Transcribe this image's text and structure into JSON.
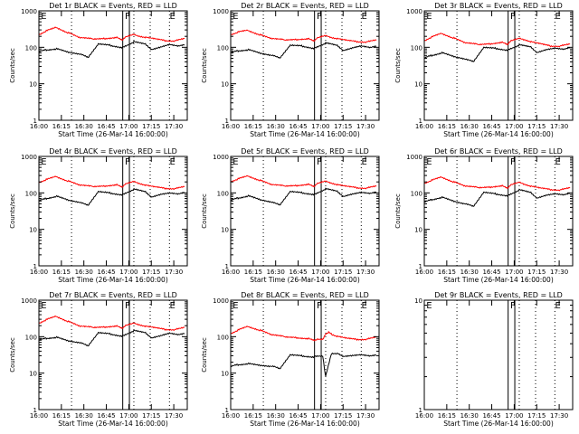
{
  "chart_data": [
    {
      "type": "line",
      "title": "Det 1r BLACK = Events, RED = LLD",
      "xlabel": "Start Time (26-Mar-14 16:00:00)",
      "ylabel": "Counts/sec",
      "xlim": [
        0,
        100
      ],
      "ylim": [
        1,
        1000
      ],
      "yscale": "log",
      "grid": false,
      "xticks": [
        "16:00",
        "16:15",
        "16:30",
        "16:45",
        "17:00",
        "17:15",
        "17:30"
      ],
      "yticks": [
        "1",
        "10",
        "100",
        "1000"
      ],
      "markers": [
        "E",
        "F",
        "E"
      ],
      "dotted_lines": [
        22,
        64,
        75,
        88
      ],
      "solid_lines": [
        56.5,
        61
      ],
      "series": [
        {
          "color": "#ff0000",
          "x": [
            0,
            5,
            12,
            20,
            28,
            36,
            44,
            52,
            56,
            58,
            64,
            68,
            72,
            78,
            85,
            92,
            98
          ],
          "values": [
            220,
            280,
            350,
            250,
            180,
            170,
            175,
            190,
            160,
            190,
            230,
            200,
            185,
            170,
            155,
            150,
            170
          ]
        },
        {
          "color": "#000000",
          "x": [
            0,
            5,
            12,
            20,
            26,
            29,
            33,
            40,
            48,
            56,
            57,
            64,
            72,
            76,
            82,
            88,
            94,
            98
          ],
          "values": [
            75,
            85,
            90,
            72,
            65,
            62,
            52,
            125,
            115,
            100,
            105,
            140,
            120,
            85,
            100,
            120,
            110,
            120
          ]
        }
      ]
    },
    {
      "type": "line",
      "title": "Det 2r BLACK = Events, RED = LLD",
      "xlabel": "Start Time (26-Mar-14 16:00:00)",
      "ylabel": "Counts/sec",
      "xlim": [
        0,
        100
      ],
      "ylim": [
        1,
        1000
      ],
      "yscale": "log",
      "grid": false,
      "xticks": [
        "16:00",
        "16:15",
        "16:30",
        "16:45",
        "17:00",
        "17:15",
        "17:30"
      ],
      "yticks": [
        "1",
        "10",
        "100",
        "1000"
      ],
      "markers": [
        "E",
        "F",
        "E"
      ],
      "dotted_lines": [
        22,
        64,
        75,
        88
      ],
      "solid_lines": [
        56.5,
        61
      ],
      "series": [
        {
          "color": "#ff0000",
          "x": [
            0,
            5,
            12,
            20,
            28,
            36,
            44,
            52,
            56,
            58,
            64,
            68,
            72,
            78,
            85,
            92,
            98
          ],
          "values": [
            220,
            260,
            290,
            220,
            170,
            160,
            165,
            175,
            150,
            180,
            215,
            185,
            170,
            155,
            145,
            140,
            155
          ]
        },
        {
          "color": "#000000",
          "x": [
            0,
            5,
            12,
            20,
            26,
            29,
            33,
            40,
            48,
            56,
            57,
            64,
            72,
            76,
            82,
            88,
            94,
            98
          ],
          "values": [
            70,
            80,
            85,
            68,
            60,
            58,
            50,
            115,
            110,
            95,
            100,
            130,
            110,
            80,
            95,
            110,
            100,
            110
          ]
        }
      ]
    },
    {
      "type": "line",
      "title": "Det 3r BLACK = Events, RED = LLD",
      "xlabel": "Start Time (26-Mar-14 16:00:00)",
      "ylabel": "Counts/sec",
      "xlim": [
        0,
        100
      ],
      "ylim": [
        1,
        1000
      ],
      "yscale": "log",
      "grid": false,
      "xticks": [
        "16:00",
        "16:15",
        "16:30",
        "16:45",
        "17:00",
        "17:15",
        "17:30"
      ],
      "yticks": [
        "1",
        "10",
        "100",
        "1000"
      ],
      "markers": [
        "E",
        "F",
        "E"
      ],
      "dotted_lines": [
        22,
        64,
        75,
        88
      ],
      "solid_lines": [
        56.5,
        61
      ],
      "series": [
        {
          "color": "#ff0000",
          "x": [
            0,
            5,
            12,
            20,
            28,
            36,
            44,
            52,
            56,
            58,
            64,
            68,
            72,
            78,
            85,
            92,
            98
          ],
          "values": [
            150,
            190,
            240,
            180,
            130,
            120,
            125,
            140,
            120,
            150,
            180,
            160,
            140,
            125,
            110,
            108,
            120
          ]
        },
        {
          "color": "#000000",
          "x": [
            0,
            5,
            12,
            20,
            26,
            29,
            33,
            40,
            48,
            56,
            57,
            64,
            72,
            76,
            82,
            88,
            94,
            98
          ],
          "values": [
            50,
            60,
            70,
            55,
            48,
            45,
            40,
            100,
            95,
            85,
            90,
            115,
            100,
            70,
            85,
            95,
            90,
            100
          ]
        }
      ]
    },
    {
      "type": "line",
      "title": "Det 4r BLACK = Events, RED = LLD",
      "xlabel": "Start Time (26-Mar-14 16:00:00)",
      "ylabel": "Counts/sec",
      "xlim": [
        0,
        100
      ],
      "ylim": [
        1,
        1000
      ],
      "yscale": "log",
      "grid": false,
      "xticks": [
        "16:00",
        "16:15",
        "16:30",
        "16:45",
        "17:00",
        "17:15",
        "17:30"
      ],
      "yticks": [
        "1",
        "10",
        "100",
        "1000"
      ],
      "markers": [
        "E",
        "F",
        "E"
      ],
      "dotted_lines": [
        22,
        64,
        75,
        88
      ],
      "solid_lines": [
        56.5,
        61
      ],
      "series": [
        {
          "color": "#ff0000",
          "x": [
            0,
            5,
            12,
            20,
            28,
            36,
            44,
            52,
            56,
            58,
            64,
            68,
            72,
            78,
            85,
            92,
            98
          ],
          "values": [
            190,
            230,
            280,
            210,
            160,
            150,
            155,
            170,
            145,
            175,
            210,
            180,
            160,
            145,
            135,
            130,
            145
          ]
        },
        {
          "color": "#000000",
          "x": [
            0,
            5,
            12,
            20,
            26,
            29,
            33,
            40,
            48,
            56,
            57,
            64,
            72,
            76,
            82,
            88,
            94,
            98
          ],
          "values": [
            60,
            70,
            80,
            62,
            55,
            52,
            45,
            110,
            100,
            90,
            95,
            125,
            105,
            75,
            90,
            100,
            95,
            105
          ]
        }
      ]
    },
    {
      "type": "line",
      "title": "Det 5r BLACK = Events, RED = LLD",
      "xlabel": "Start Time (26-Mar-14 16:00:00)",
      "ylabel": "Counts/sec",
      "xlim": [
        0,
        100
      ],
      "ylim": [
        1,
        1000
      ],
      "yscale": "log",
      "grid": false,
      "xticks": [
        "16:00",
        "16:15",
        "16:30",
        "16:45",
        "17:00",
        "17:15",
        "17:30"
      ],
      "yticks": [
        "1",
        "10",
        "100",
        "1000"
      ],
      "markers": [
        "E",
        "F",
        "E"
      ],
      "dotted_lines": [
        22,
        64,
        75,
        88
      ],
      "solid_lines": [
        56.5,
        61
      ],
      "series": [
        {
          "color": "#ff0000",
          "x": [
            0,
            5,
            12,
            20,
            28,
            36,
            44,
            52,
            56,
            58,
            64,
            68,
            72,
            78,
            85,
            92,
            98
          ],
          "values": [
            200,
            240,
            290,
            220,
            165,
            155,
            160,
            175,
            150,
            180,
            215,
            185,
            165,
            150,
            140,
            135,
            150
          ]
        },
        {
          "color": "#000000",
          "x": [
            0,
            5,
            12,
            20,
            26,
            29,
            33,
            40,
            48,
            56,
            57,
            64,
            72,
            76,
            82,
            88,
            94,
            98
          ],
          "values": [
            62,
            72,
            82,
            64,
            56,
            53,
            46,
            110,
            102,
            92,
            96,
            128,
            108,
            78,
            92,
            104,
            98,
            108
          ]
        }
      ]
    },
    {
      "type": "line",
      "title": "Det 6r BLACK = Events, RED = LLD",
      "xlabel": "Start Time (26-Mar-14 16:00:00)",
      "ylabel": "Counts/sec",
      "xlim": [
        0,
        100
      ],
      "ylim": [
        1,
        1000
      ],
      "yscale": "log",
      "grid": false,
      "xticks": [
        "16:00",
        "16:15",
        "16:30",
        "16:45",
        "17:00",
        "17:15",
        "17:30"
      ],
      "yticks": [
        "1",
        "10",
        "100",
        "1000"
      ],
      "markers": [
        "E",
        "F",
        "E"
      ],
      "dotted_lines": [
        22,
        64,
        75,
        88
      ],
      "solid_lines": [
        56.5,
        61
      ],
      "series": [
        {
          "color": "#ff0000",
          "x": [
            0,
            5,
            12,
            20,
            28,
            36,
            44,
            52,
            56,
            58,
            64,
            68,
            72,
            78,
            85,
            92,
            98
          ],
          "values": [
            180,
            220,
            270,
            200,
            150,
            140,
            145,
            160,
            135,
            165,
            200,
            170,
            150,
            135,
            125,
            120,
            135
          ]
        },
        {
          "color": "#000000",
          "x": [
            0,
            5,
            12,
            20,
            26,
            29,
            33,
            40,
            48,
            56,
            57,
            64,
            72,
            76,
            82,
            88,
            94,
            98
          ],
          "values": [
            55,
            65,
            75,
            58,
            50,
            48,
            42,
            105,
            95,
            85,
            90,
            120,
            100,
            70,
            85,
            95,
            90,
            100
          ]
        }
      ]
    },
    {
      "type": "line",
      "title": "Det 7r BLACK = Events, RED = LLD",
      "xlabel": "Start Time (26-Mar-14 16:00:00)",
      "ylabel": "Counts/sec",
      "xlim": [
        0,
        100
      ],
      "ylim": [
        1,
        1000
      ],
      "yscale": "log",
      "grid": false,
      "xticks": [
        "16:00",
        "16:15",
        "16:30",
        "16:45",
        "17:00",
        "17:15",
        "17:30"
      ],
      "yticks": [
        "1",
        "10",
        "100",
        "1000"
      ],
      "markers": [
        "E",
        "F",
        "E"
      ],
      "dotted_lines": [
        22,
        64,
        75,
        88
      ],
      "solid_lines": [
        56.5,
        61
      ],
      "series": [
        {
          "color": "#ff0000",
          "x": [
            0,
            5,
            12,
            20,
            28,
            36,
            44,
            52,
            56,
            58,
            64,
            68,
            72,
            78,
            85,
            92,
            98
          ],
          "values": [
            230,
            290,
            360,
            260,
            190,
            180,
            185,
            200,
            170,
            200,
            240,
            210,
            190,
            175,
            160,
            155,
            175
          ]
        },
        {
          "color": "#000000",
          "x": [
            0,
            5,
            12,
            20,
            26,
            29,
            33,
            40,
            48,
            56,
            57,
            64,
            72,
            76,
            82,
            88,
            94,
            98
          ],
          "values": [
            80,
            90,
            95,
            75,
            68,
            65,
            55,
            130,
            120,
            105,
            110,
            145,
            125,
            90,
            105,
            125,
            115,
            125
          ]
        }
      ]
    },
    {
      "type": "line",
      "title": "Det 8r BLACK = Events, RED = LLD",
      "xlabel": "Start Time (26-Mar-14 16:00:00)",
      "ylabel": "Counts/sec",
      "xlim": [
        0,
        100
      ],
      "ylim": [
        1,
        1000
      ],
      "yscale": "log",
      "grid": false,
      "xticks": [
        "16:00",
        "16:15",
        "16:30",
        "16:45",
        "17:00",
        "17:15",
        "17:30"
      ],
      "yticks": [
        "1",
        "10",
        "100",
        "1000"
      ],
      "markers": [
        "E",
        "F",
        "E"
      ],
      "dotted_lines": [
        22,
        64,
        75,
        88
      ],
      "solid_lines": [
        56.5,
        61
      ],
      "series": [
        {
          "color": "#ff0000",
          "x": [
            0,
            5,
            12,
            20,
            28,
            36,
            44,
            52,
            56,
            58,
            62,
            64,
            66,
            68,
            72,
            78,
            85,
            92,
            98
          ],
          "values": [
            120,
            150,
            190,
            150,
            110,
            100,
            95,
            90,
            80,
            85,
            85,
            120,
            130,
            115,
            100,
            90,
            85,
            85,
            95
          ]
        },
        {
          "color": "#000000",
          "x": [
            0,
            5,
            12,
            20,
            26,
            29,
            33,
            40,
            48,
            56,
            57,
            62,
            64,
            68,
            72,
            76,
            82,
            88,
            94,
            98
          ],
          "values": [
            15,
            17,
            18,
            16,
            15,
            15,
            13,
            32,
            30,
            28,
            30,
            30,
            8,
            35,
            35,
            28,
            30,
            32,
            30,
            32
          ]
        }
      ]
    },
    {
      "type": "line",
      "title": "Det 9r BLACK = Events, RED = LLD",
      "xlabel": "Start Time (26-Mar-14 16:00:00)",
      "ylabel": "",
      "xlim": [
        0,
        100
      ],
      "ylim": [
        1,
        10
      ],
      "yscale": "log",
      "grid": false,
      "xticks": [
        "16:00",
        "16:15",
        "16:30",
        "16:45",
        "17:00",
        "17:15",
        "17:30"
      ],
      "yticks": [
        "1",
        "10"
      ],
      "markers": [
        "E",
        "F",
        "E"
      ],
      "dotted_lines": [
        22,
        64,
        75,
        88
      ],
      "solid_lines": [
        56.5,
        61
      ],
      "series": []
    }
  ]
}
